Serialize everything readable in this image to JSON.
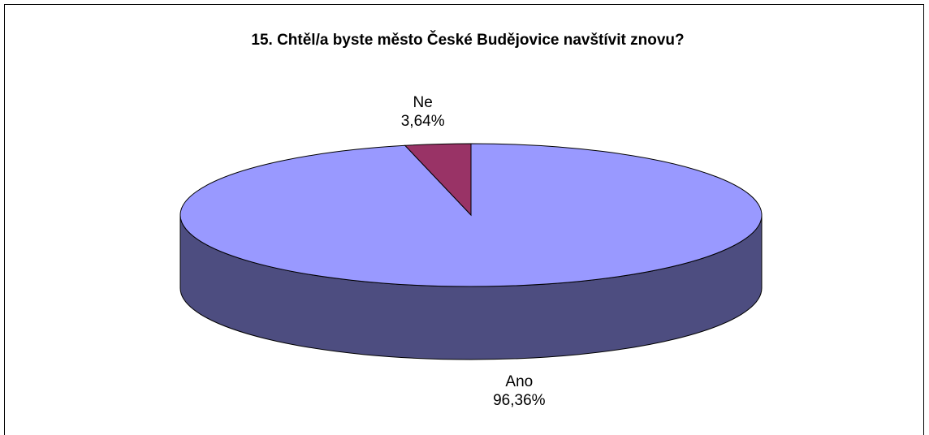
{
  "chart_data": {
    "type": "pie3d",
    "title": "15. Chtěl/a byste město České Budějovice navštívit znovu?",
    "categories": [
      "Ano",
      "Ne"
    ],
    "values": [
      96.36,
      3.64
    ],
    "value_labels": [
      "96,36%",
      "3,64%"
    ],
    "colors": [
      "#9999ff",
      "#993366"
    ]
  }
}
